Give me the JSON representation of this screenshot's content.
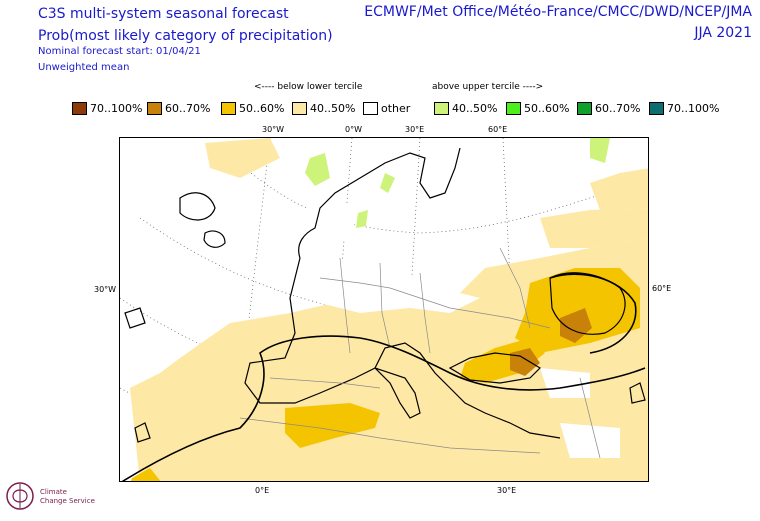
{
  "header": {
    "title_line1": "C3S multi-system seasonal forecast",
    "title_line2": "Prob(most likely category of precipitation)",
    "nominal_start": "Nominal forecast start: 01/04/21",
    "mean_type": "Unweighted mean",
    "centres": "ECMWF/Met Office/Météo-France/CMCC/DWD/NCEP/JMA",
    "season": "JJA 2021"
  },
  "legend": {
    "below_label": "<---- below lower tercile",
    "above_label": "above upper tercile ---->",
    "items": [
      {
        "label": "70..100%",
        "color": "#8b3a08"
      },
      {
        "label": "60..70%",
        "color": "#c8820a"
      },
      {
        "label": "50..60%",
        "color": "#f5c400"
      },
      {
        "label": "40..50%",
        "color": "#fde8a6"
      },
      {
        "label": "other",
        "color": "#ffffff"
      },
      {
        "label": "40..50%",
        "color": "#cef37a"
      },
      {
        "label": "50..60%",
        "color": "#4cef1c"
      },
      {
        "label": "60..70%",
        "color": "#10a12a"
      },
      {
        "label": "70..100%",
        "color": "#0c6e6e"
      }
    ]
  },
  "map": {
    "lon_labels_top": [
      "30°W",
      "0°W",
      "30°E",
      "60°E"
    ],
    "lon_labels_bottom": [
      "0°E",
      "30°E"
    ],
    "lat_label_left": "30°W",
    "lat_label_right": "60°E"
  },
  "logo": {
    "line1": "Climate",
    "line2": "Change Service"
  }
}
